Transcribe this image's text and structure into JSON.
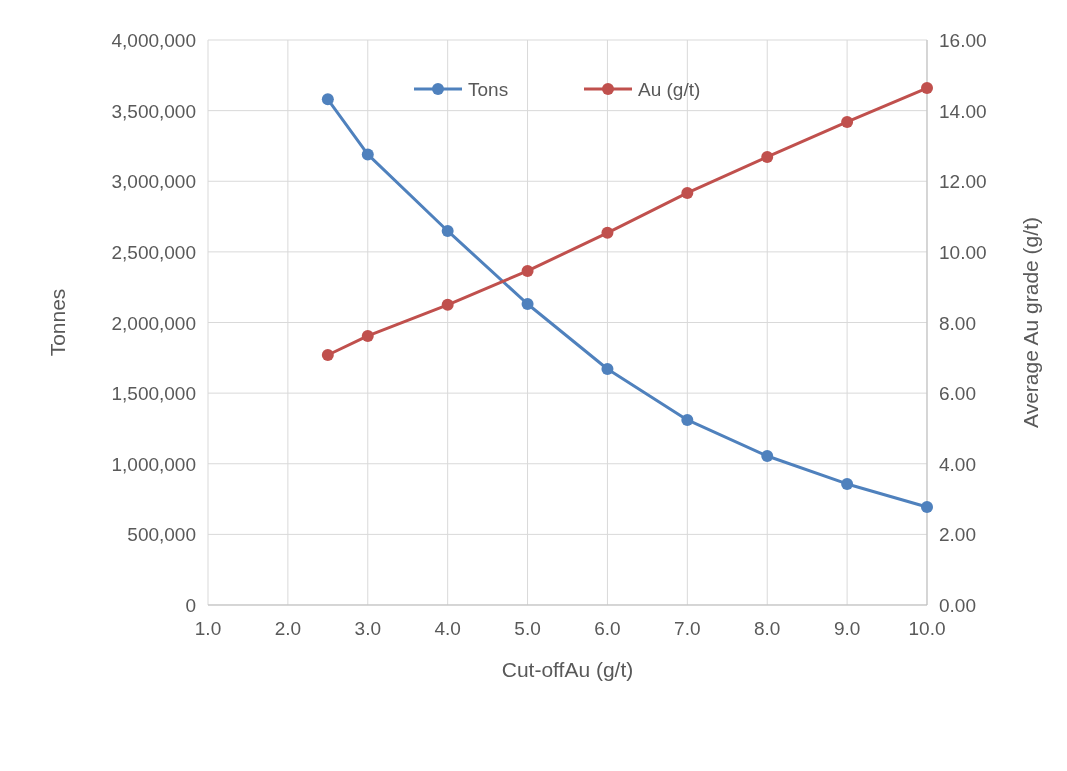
{
  "chart_data": {
    "type": "line",
    "xlabel": "Cut-offAu (g/t)",
    "ylabel": "Tonnes",
    "y2label": "Average Au grade (g/t)",
    "x": [
      2.5,
      3,
      4,
      5,
      6,
      7,
      8,
      9,
      10
    ],
    "series": [
      {
        "name": "Tons",
        "color": "#4f81bd",
        "values": [
          3580000,
          3190000,
          2648000,
          2131000,
          1671000,
          1310000,
          1055000,
          857000,
          694000
        ]
      },
      {
        "name": "Au (g/t)",
        "color": "#c0504d",
        "axis": "y2",
        "values": [
          7.08,
          7.62,
          8.5,
          9.46,
          10.54,
          11.67,
          12.69,
          13.68,
          14.64
        ]
      }
    ],
    "xlim": [
      1,
      10
    ],
    "xticks": [
      {
        "value": 1,
        "label": "1.0"
      },
      {
        "value": 2,
        "label": "2.0"
      },
      {
        "value": 3,
        "label": "3.0"
      },
      {
        "value": 4,
        "label": "4.0"
      },
      {
        "value": 5,
        "label": "5.0"
      },
      {
        "value": 6,
        "label": "6.0"
      },
      {
        "value": 7,
        "label": "7.0"
      },
      {
        "value": 8,
        "label": "8.0"
      },
      {
        "value": 9,
        "label": "9.0"
      },
      {
        "value": 10,
        "label": "10.0"
      }
    ],
    "ylim": [
      0,
      4000000
    ],
    "yticks": [
      {
        "value": 0,
        "label": "0"
      },
      {
        "value": 500000,
        "label": "500,000"
      },
      {
        "value": 1000000,
        "label": "1,000,000"
      },
      {
        "value": 1500000,
        "label": "1,500,000"
      },
      {
        "value": 2000000,
        "label": "2,000,000"
      },
      {
        "value": 2500000,
        "label": "2,500,000"
      },
      {
        "value": 3000000,
        "label": "3,000,000"
      },
      {
        "value": 3500000,
        "label": "3,500,000"
      },
      {
        "value": 4000000,
        "label": "4,000,000"
      }
    ],
    "y2lim": [
      0,
      16
    ],
    "y2ticks": [
      {
        "value": 0,
        "label": "0.00"
      },
      {
        "value": 2,
        "label": "2.00"
      },
      {
        "value": 4,
        "label": "4.00"
      },
      {
        "value": 6,
        "label": "6.00"
      },
      {
        "value": 8,
        "label": "8.00"
      },
      {
        "value": 10,
        "label": "10.00"
      },
      {
        "value": 12,
        "label": "12.00"
      },
      {
        "value": 14,
        "label": "14.00"
      },
      {
        "value": 16,
        "label": "16.00"
      }
    ],
    "grid": true,
    "legend": "top",
    "marker": "circle",
    "line_style": "solid"
  }
}
